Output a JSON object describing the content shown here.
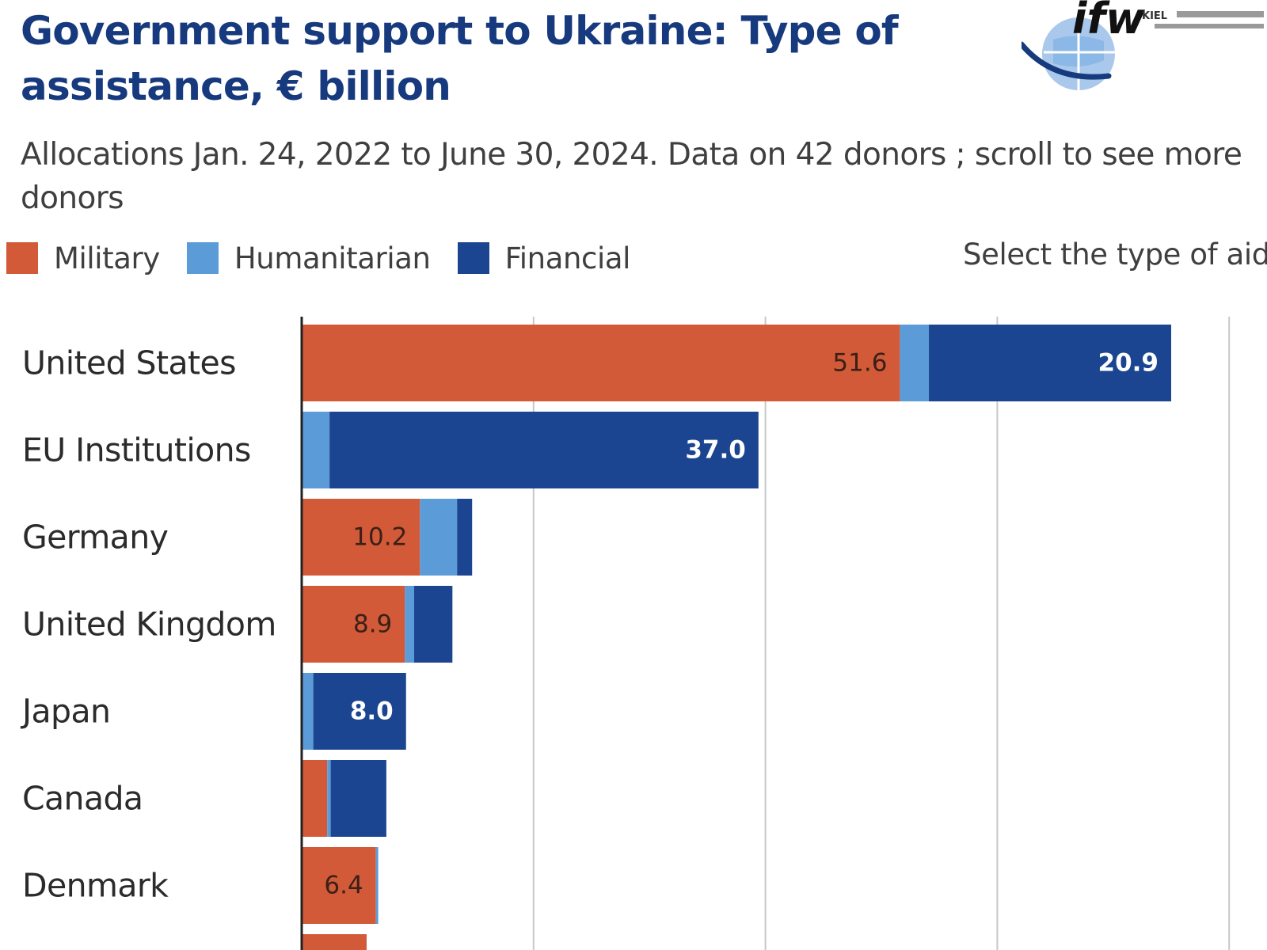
{
  "header": {
    "title": "Government support to Ukraine:  Type of assistance, € billion",
    "subtitle": "Allocations Jan. 24, 2022 to June 30, 2024. Data on 42 donors ; scroll to see more donors"
  },
  "logo": {
    "text": "ifw",
    "small_text": "KIEL"
  },
  "controls": {
    "select_type_label": "Select the type of aid"
  },
  "colors": {
    "military": "#d25a39",
    "humanitarian": "#5b9bd8",
    "financial": "#1b4590",
    "gridline": "#c8c8c8",
    "axis": "#222222"
  },
  "chart_data": {
    "type": "bar",
    "orientation": "horizontal",
    "stacked": true,
    "title": "Government support to Ukraine:  Type of assistance, € billion",
    "subtitle": "Allocations Jan. 24, 2022 to June 30, 2024. Data on 42 donors ; scroll to see more donors",
    "unit": "€ billion",
    "grid": true,
    "legend_position": "top-left",
    "xlim": [
      0,
      80
    ],
    "gridlines": [
      20,
      40,
      60,
      80
    ],
    "categories": [
      "United States",
      "EU Institutions",
      "Germany",
      "United Kingdom",
      "Japan",
      "Canada",
      "Denmark"
    ],
    "series": [
      {
        "name": "Military",
        "color": "#d25a39",
        "values": [
          51.6,
          0,
          10.2,
          8.9,
          0,
          2.2,
          6.4
        ],
        "labels": [
          "51.6",
          "",
          "10.2",
          "8.9",
          "",
          "",
          "6.4"
        ]
      },
      {
        "name": "Humanitarian",
        "color": "#5b9bd8",
        "values": [
          2.5,
          2.4,
          3.2,
          0.8,
          1.0,
          0.3,
          0.2
        ],
        "labels": [
          "",
          "",
          "",
          "",
          "",
          "",
          ""
        ]
      },
      {
        "name": "Financial",
        "color": "#1b4590",
        "values": [
          20.9,
          37.0,
          1.3,
          3.3,
          8.0,
          4.8,
          0
        ],
        "labels": [
          "20.9",
          "37.0",
          "",
          "",
          "8.0",
          "",
          ""
        ]
      }
    ]
  }
}
